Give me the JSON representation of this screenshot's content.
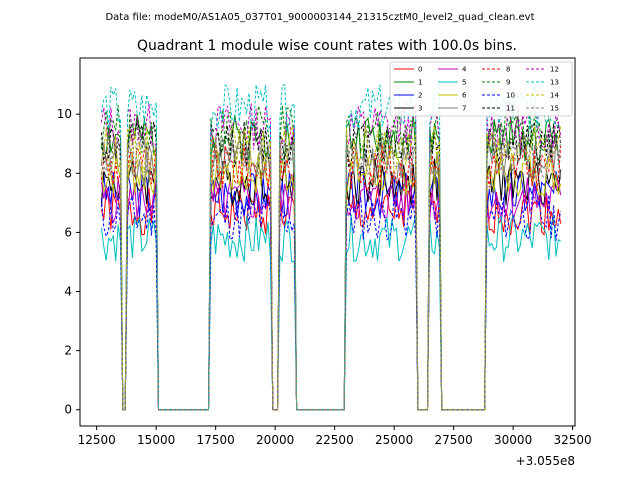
{
  "file_label": "Data file: modeM0/AS1A05_037T01_9000003144_21315cztM0_level2_quad_clean.evt",
  "chart_data": {
    "type": "line",
    "title": "Quadrant 1 module wise count rates with 100.0s bins.",
    "xlabel": "",
    "ylabel": "",
    "x_offset_label": "+3.055e8",
    "xlim": [
      11800,
      32600
    ],
    "ylim": [
      -0.55,
      11.9
    ],
    "xticks": [
      12500,
      15000,
      17500,
      20000,
      22500,
      25000,
      27500,
      30000,
      32500
    ],
    "xtick_labels": [
      "12500",
      "15000",
      "17500",
      "20000",
      "22500",
      "25000",
      "27500",
      "30000",
      "32500"
    ],
    "yticks": [
      0,
      2,
      4,
      6,
      8,
      10
    ],
    "ytick_labels": [
      "0",
      "2",
      "4",
      "6",
      "8",
      "10"
    ],
    "active_intervals": [
      [
        12700,
        13500
      ],
      [
        13800,
        15000
      ],
      [
        17300,
        19800
      ],
      [
        20200,
        20800
      ],
      [
        23000,
        25900
      ],
      [
        26500,
        26900
      ],
      [
        28900,
        32000
      ]
    ],
    "legend_position": "top-right",
    "series": [
      {
        "name": "0",
        "color": "#ff0000",
        "dash": "solid",
        "level": 6.7
      },
      {
        "name": "1",
        "color": "#008000",
        "dash": "solid",
        "level": 9.2
      },
      {
        "name": "2",
        "color": "#0000ff",
        "dash": "solid",
        "level": 7.3
      },
      {
        "name": "3",
        "color": "#000000",
        "dash": "solid",
        "level": 7.7
      },
      {
        "name": "4",
        "color": "#bf00bf",
        "dash": "solid",
        "level": 7.1
      },
      {
        "name": "5",
        "color": "#00bfbf",
        "dash": "solid",
        "level": 5.8
      },
      {
        "name": "6",
        "color": "#bfbf00",
        "dash": "solid",
        "level": 8.0
      },
      {
        "name": "7",
        "color": "#808080",
        "dash": "solid",
        "level": 8.4
      },
      {
        "name": "8",
        "color": "#ff0000",
        "dash": "dashed",
        "level": 8.2
      },
      {
        "name": "9",
        "color": "#008000",
        "dash": "dashed",
        "level": 9.5
      },
      {
        "name": "10",
        "color": "#0000ff",
        "dash": "dashed",
        "level": 6.5
      },
      {
        "name": "11",
        "color": "#000000",
        "dash": "dashed",
        "level": 9.0
      },
      {
        "name": "12",
        "color": "#bf00bf",
        "dash": "dashed",
        "level": 9.6
      },
      {
        "name": "13",
        "color": "#00bfbf",
        "dash": "dashed",
        "level": 10.2
      },
      {
        "name": "14",
        "color": "#bfbf00",
        "dash": "dashed",
        "level": 8.8
      },
      {
        "name": "15",
        "color": "#808080",
        "dash": "dashed",
        "level": 8.6
      }
    ]
  }
}
